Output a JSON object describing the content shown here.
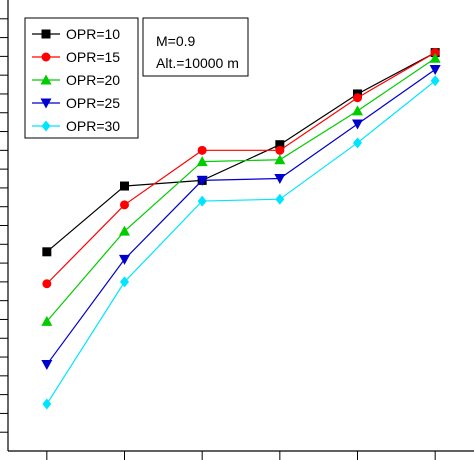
{
  "chart_data": {
    "type": "line",
    "x": [
      1,
      2,
      3,
      4,
      5,
      6
    ],
    "ylim": [
      0,
      12
    ],
    "xlim": [
      0.5,
      6.5
    ],
    "grid": false,
    "legend_position": "top-left",
    "annotation": [
      "M=0.9",
      "Alt.=10000 m"
    ],
    "series": [
      {
        "name": "OPR=10",
        "color": "#000000",
        "marker": "square",
        "values": [
          5.3,
          7.05,
          7.2,
          8.15,
          9.5,
          10.6
        ]
      },
      {
        "name": "OPR=15",
        "color": "#ff0000",
        "marker": "circle",
        "values": [
          4.45,
          6.55,
          8.0,
          8.0,
          9.4,
          10.6
        ]
      },
      {
        "name": "OPR=20",
        "color": "#00cc00",
        "marker": "triangle-up",
        "values": [
          3.45,
          5.85,
          7.7,
          7.75,
          9.05,
          10.45
        ]
      },
      {
        "name": "OPR=25",
        "color": "#0000cc",
        "marker": "triangle-down",
        "values": [
          2.3,
          5.1,
          7.2,
          7.25,
          8.7,
          10.15
        ]
      },
      {
        "name": "OPR=30",
        "color": "#00e5ff",
        "marker": "diamond",
        "values": [
          1.25,
          4.5,
          6.65,
          6.7,
          8.2,
          9.85
        ]
      }
    ]
  }
}
